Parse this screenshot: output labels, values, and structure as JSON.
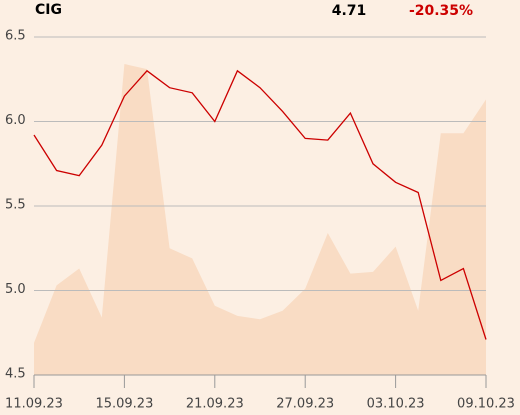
{
  "chart_data": {
    "type": "line",
    "title": "CIG",
    "price": "4.71",
    "change": "-20.35%",
    "categories": [
      "11.09.23",
      null,
      null,
      null,
      "15.09.23",
      null,
      null,
      null,
      "21.09.23",
      null,
      null,
      null,
      "27.09.23",
      null,
      null,
      null,
      "03.10.23",
      null,
      null,
      null,
      "09.10.23"
    ],
    "series": [
      {
        "color": "#f9dcc4",
        "values": [
          4.69,
          5.03,
          5.13,
          4.84,
          6.34,
          6.31,
          5.25,
          5.19,
          4.91,
          4.85,
          4.83,
          4.88,
          5.01,
          5.34,
          5.1,
          5.11,
          5.26,
          4.88,
          5.93,
          5.93,
          6.13
        ]
      },
      {
        "color": "#cc0000",
        "values": [
          5.92,
          5.71,
          5.68,
          5.86,
          6.15,
          6.3,
          6.2,
          6.17,
          6.0,
          6.3,
          6.2,
          6.06,
          5.9,
          5.89,
          6.05,
          5.75,
          5.64,
          5.58,
          5.06,
          5.13,
          4.71
        ]
      }
    ],
    "ylim": [
      4.5,
      6.5
    ],
    "yticks": [
      4.5,
      {
        "value": 5,
        "label": "5.0"
      },
      5.5,
      {
        "value": 6,
        "label": "6.0"
      },
      6.5
    ],
    "grid": true
  }
}
